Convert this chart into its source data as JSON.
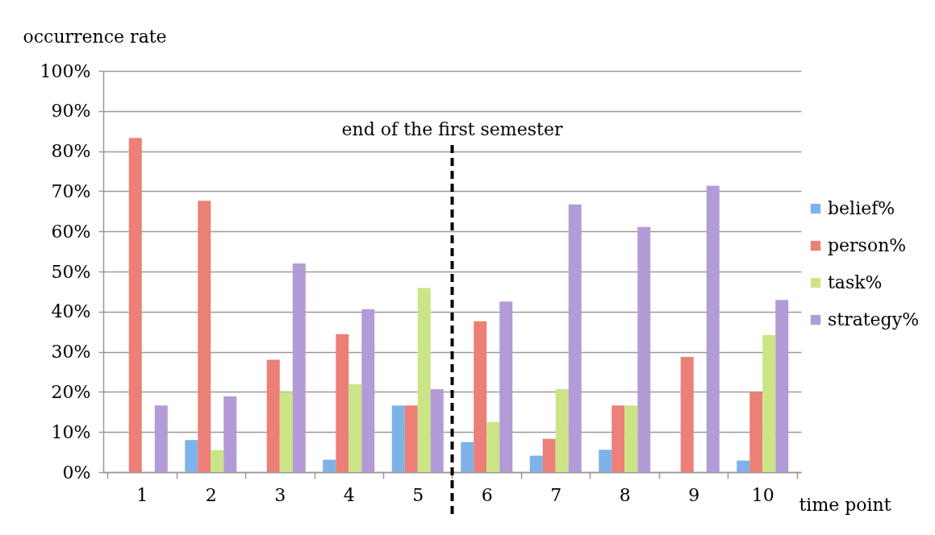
{
  "chart_data": {
    "type": "bar",
    "xlabel": "time point",
    "ylabel": "occurrence rate",
    "x": [
      1,
      2,
      3,
      4,
      5,
      6,
      7,
      8,
      9,
      10
    ],
    "series": [
      {
        "name": "belief%",
        "color": "#7fb2e8",
        "values": [
          0,
          8.0,
          0,
          3.1,
          16.6,
          7.5,
          4.1,
          5.6,
          0,
          2.9
        ]
      },
      {
        "name": "person%",
        "color": "#ec7f77",
        "values": [
          83.3,
          67.6,
          28.0,
          34.4,
          16.6,
          37.6,
          8.3,
          16.6,
          28.7,
          20.0
        ]
      },
      {
        "name": "task%",
        "color": "#cbe586",
        "values": [
          0,
          5.5,
          20.0,
          21.9,
          45.9,
          12.5,
          20.7,
          16.6,
          0,
          34.2
        ]
      },
      {
        "name": "strategy%",
        "color": "#b29bd6",
        "values": [
          16.6,
          18.9,
          52.0,
          40.6,
          20.7,
          42.5,
          66.7,
          61.1,
          71.4,
          42.9
        ]
      }
    ],
    "xlim": [
      0.5,
      10.5
    ],
    "xticks": [
      {
        "value": 0.5,
        "label": null
      },
      1,
      {
        "value": 1.5,
        "label": null
      },
      2,
      {
        "value": 2.5,
        "label": null
      },
      3,
      {
        "value": 3.5,
        "label": null
      },
      4,
      {
        "value": 4.5,
        "label": null
      },
      5,
      {
        "value": 5.5,
        "label": null
      },
      6,
      {
        "value": 6.5,
        "label": null
      },
      7,
      {
        "value": 7.5,
        "label": null
      },
      8,
      {
        "value": 8.5,
        "label": null
      },
      9,
      {
        "value": 9.5,
        "label": null
      },
      10,
      {
        "value": 10.5,
        "label": null
      }
    ],
    "ylim": [
      0,
      100
    ],
    "yticks": [
      {
        "value": 0,
        "label": "0%"
      },
      {
        "value": 10,
        "label": "10%"
      },
      {
        "value": 20,
        "label": "20%"
      },
      {
        "value": 30,
        "label": "30%"
      },
      {
        "value": 40,
        "label": "40%"
      },
      {
        "value": 50,
        "label": "50%"
      },
      {
        "value": 60,
        "label": "60%"
      },
      {
        "value": 70,
        "label": "70%"
      },
      {
        "value": 80,
        "label": "80%"
      },
      {
        "value": 90,
        "label": "90%"
      },
      {
        "value": 100,
        "label": "100%"
      }
    ],
    "grid": "y",
    "legend": "right",
    "ref_lines": [
      {
        "axis": "x",
        "value": 5.5,
        "label": "end of the first semester",
        "color": "#000000",
        "line_style": "dashed"
      }
    ]
  }
}
